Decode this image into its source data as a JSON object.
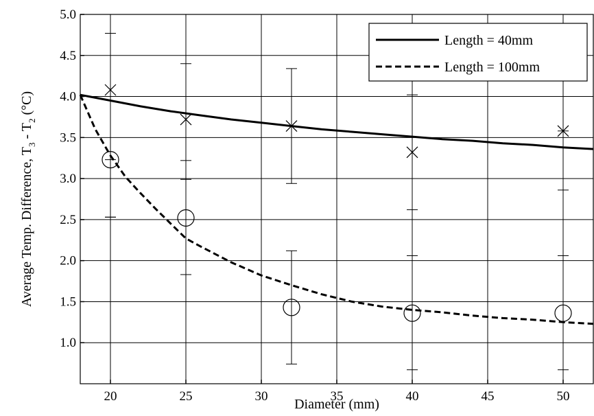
{
  "chart_data": {
    "type": "scatter",
    "title": "",
    "xlabel": "Diameter (mm)",
    "ylabel_parts": [
      "Average Temp. Difference, T",
      "3",
      " - T",
      "2",
      " (°C)"
    ],
    "xlim": [
      18,
      52
    ],
    "ylim": [
      0.5,
      5.0
    ],
    "x_ticks": [
      20,
      25,
      30,
      35,
      40,
      45,
      50
    ],
    "x_tick_labels": [
      "20",
      "25",
      "30",
      "35",
      "40",
      "45",
      "50"
    ],
    "y_ticks": [
      1.0,
      1.5,
      2.0,
      2.5,
      3.0,
      3.5,
      4.0,
      4.5,
      5.0
    ],
    "y_tick_labels": [
      "1.0",
      "1.5",
      "2.0",
      "2.5",
      "3.0",
      "3.5",
      "4.0",
      "4.5",
      "5.0"
    ],
    "grid": true,
    "legend_position": "top-right",
    "series": [
      {
        "name": "Length = 40mm",
        "line_style": "solid",
        "fit_curve": [
          [
            18,
            4.02
          ],
          [
            20,
            3.95
          ],
          [
            22,
            3.88
          ],
          [
            24,
            3.82
          ],
          [
            26,
            3.77
          ],
          [
            28,
            3.72
          ],
          [
            30,
            3.68
          ],
          [
            32,
            3.64
          ],
          [
            34,
            3.6
          ],
          [
            36,
            3.57
          ],
          [
            38,
            3.54
          ],
          [
            40,
            3.51
          ],
          [
            42,
            3.48
          ],
          [
            44,
            3.46
          ],
          [
            46,
            3.43
          ],
          [
            48,
            3.41
          ],
          [
            50,
            3.38
          ],
          [
            52,
            3.36
          ]
        ],
        "marker": "x",
        "points": [
          {
            "x": 20,
            "y": 4.08,
            "err_low": 2.53,
            "err_high": 4.77
          },
          {
            "x": 25,
            "y": 3.72,
            "err_low": 3.22,
            "err_high": 4.4
          },
          {
            "x": 32,
            "y": 3.64,
            "err_low": 2.94,
            "err_high": 4.34
          },
          {
            "x": 40,
            "y": 3.32,
            "err_low": 2.62,
            "err_high": 4.02
          },
          {
            "x": 50,
            "y": 3.58,
            "err_low": 2.86,
            "err_high": 3.58
          }
        ]
      },
      {
        "name": "Length = 100mm",
        "line_style": "dashed",
        "fit_curve": [
          [
            18,
            4.02
          ],
          [
            19,
            3.6
          ],
          [
            20,
            3.28
          ],
          [
            21,
            3.02
          ],
          [
            22,
            2.82
          ],
          [
            23,
            2.63
          ],
          [
            24,
            2.45
          ],
          [
            25,
            2.27
          ],
          [
            26,
            2.17
          ],
          [
            28,
            1.98
          ],
          [
            30,
            1.82
          ],
          [
            32,
            1.7
          ],
          [
            34,
            1.59
          ],
          [
            36,
            1.5
          ],
          [
            38,
            1.44
          ],
          [
            40,
            1.4
          ],
          [
            42,
            1.37
          ],
          [
            44,
            1.33
          ],
          [
            46,
            1.3
          ],
          [
            48,
            1.28
          ],
          [
            50,
            1.25
          ],
          [
            52,
            1.23
          ]
        ],
        "marker": "circle",
        "points": [
          {
            "x": 20,
            "y": 3.23,
            "err_low": 2.53,
            "err_high": 3.23
          },
          {
            "x": 25,
            "y": 2.52,
            "err_low": 1.83,
            "err_high": 2.99
          },
          {
            "x": 32,
            "y": 1.43,
            "err_low": 0.74,
            "err_high": 2.12
          },
          {
            "x": 40,
            "y": 1.36,
            "err_low": 0.67,
            "err_high": 2.06
          },
          {
            "x": 50,
            "y": 1.36,
            "err_low": 0.67,
            "err_high": 2.06
          }
        ]
      }
    ]
  }
}
